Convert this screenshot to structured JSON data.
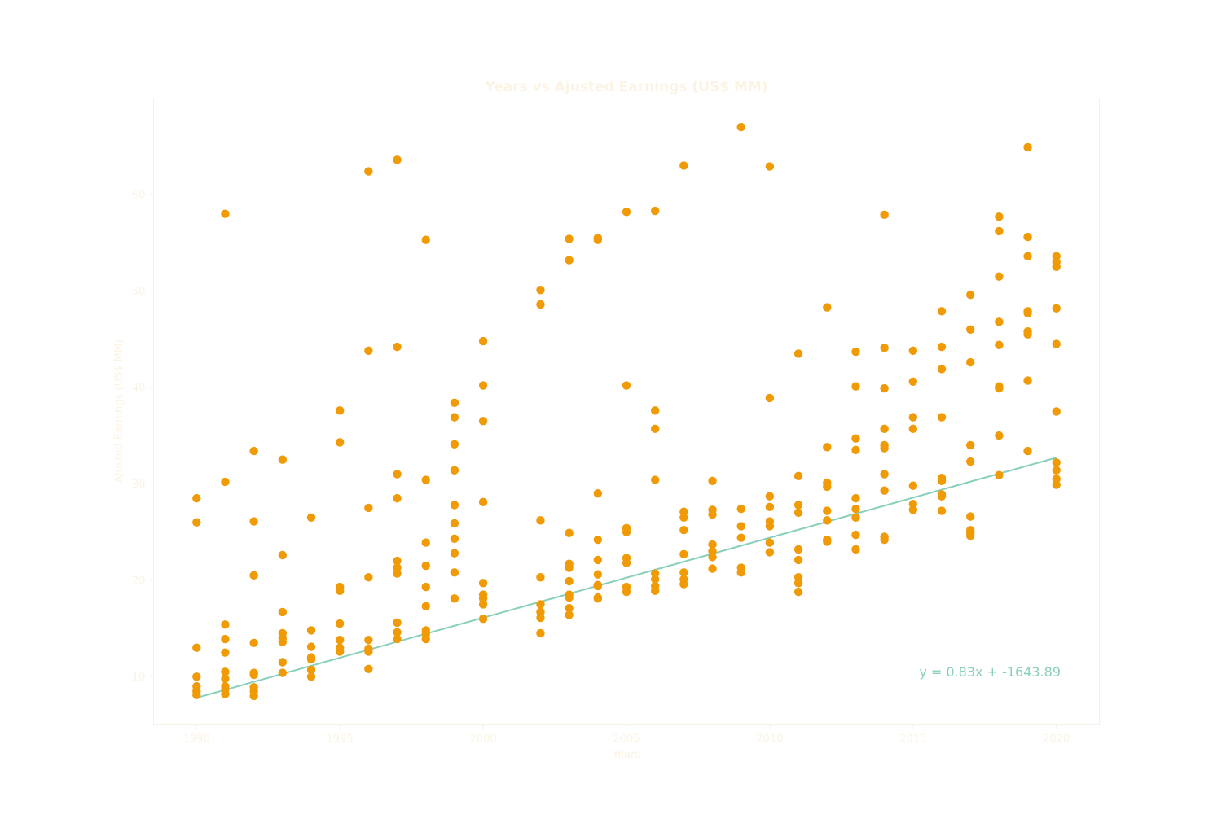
{
  "chart_data": {
    "type": "scatter",
    "title": "Years vs Ajusted Earnings (US$ MM)",
    "xlabel": "Years",
    "ylabel": "Ajusted Earnings (US$ MM)",
    "xlim": [
      1988.5,
      2021.5
    ],
    "ylim": [
      5,
      70
    ],
    "xticks": [
      1990,
      1995,
      2000,
      2005,
      2010,
      2015,
      2020
    ],
    "yticks": [
      10,
      20,
      30,
      40,
      50,
      60
    ],
    "grid": false,
    "colors": {
      "points": "#f09a06",
      "trend": "#88cfbc",
      "text": "#fbf4e4",
      "frame": "#f4f0e6"
    },
    "trendline": {
      "slope": 0.83,
      "intercept": -1643.89,
      "x_range": [
        1990,
        2020
      ],
      "label": "y = 0.83x + -1643.89"
    },
    "points": [
      {
        "x": 1990,
        "y": 28.5
      },
      {
        "x": 1990,
        "y": 26.0
      },
      {
        "x": 1990,
        "y": 13.0
      },
      {
        "x": 1990,
        "y": 10.0
      },
      {
        "x": 1990,
        "y": 9.0
      },
      {
        "x": 1990,
        "y": 8.5
      },
      {
        "x": 1990,
        "y": 8.1
      },
      {
        "x": 1991,
        "y": 58.0
      },
      {
        "x": 1991,
        "y": 30.2
      },
      {
        "x": 1991,
        "y": 15.4
      },
      {
        "x": 1991,
        "y": 13.9
      },
      {
        "x": 1991,
        "y": 12.5
      },
      {
        "x": 1991,
        "y": 10.5
      },
      {
        "x": 1991,
        "y": 9.8
      },
      {
        "x": 1991,
        "y": 9.0
      },
      {
        "x": 1991,
        "y": 8.7
      },
      {
        "x": 1991,
        "y": 8.2
      },
      {
        "x": 1992,
        "y": 33.4
      },
      {
        "x": 1992,
        "y": 26.1
      },
      {
        "x": 1992,
        "y": 20.5
      },
      {
        "x": 1992,
        "y": 13.5
      },
      {
        "x": 1992,
        "y": 10.4
      },
      {
        "x": 1992,
        "y": 10.2
      },
      {
        "x": 1992,
        "y": 8.9
      },
      {
        "x": 1992,
        "y": 8.5
      },
      {
        "x": 1992,
        "y": 8.0
      },
      {
        "x": 1993,
        "y": 32.5
      },
      {
        "x": 1993,
        "y": 22.6
      },
      {
        "x": 1993,
        "y": 16.7
      },
      {
        "x": 1993,
        "y": 14.5
      },
      {
        "x": 1993,
        "y": 14.0
      },
      {
        "x": 1993,
        "y": 13.6
      },
      {
        "x": 1993,
        "y": 11.5
      },
      {
        "x": 1993,
        "y": 10.4
      },
      {
        "x": 1994,
        "y": 26.5
      },
      {
        "x": 1994,
        "y": 14.8
      },
      {
        "x": 1994,
        "y": 13.1
      },
      {
        "x": 1994,
        "y": 12.0
      },
      {
        "x": 1994,
        "y": 11.8
      },
      {
        "x": 1994,
        "y": 10.7
      },
      {
        "x": 1994,
        "y": 10.0
      },
      {
        "x": 1995,
        "y": 37.6
      },
      {
        "x": 1995,
        "y": 34.3
      },
      {
        "x": 1995,
        "y": 19.3
      },
      {
        "x": 1995,
        "y": 18.9
      },
      {
        "x": 1995,
        "y": 15.5
      },
      {
        "x": 1995,
        "y": 13.8
      },
      {
        "x": 1995,
        "y": 13.0
      },
      {
        "x": 1995,
        "y": 12.6
      },
      {
        "x": 1996,
        "y": 62.4
      },
      {
        "x": 1996,
        "y": 43.8
      },
      {
        "x": 1996,
        "y": 27.5
      },
      {
        "x": 1996,
        "y": 20.3
      },
      {
        "x": 1996,
        "y": 13.8
      },
      {
        "x": 1996,
        "y": 12.9
      },
      {
        "x": 1996,
        "y": 12.6
      },
      {
        "x": 1996,
        "y": 10.8
      },
      {
        "x": 1997,
        "y": 63.6
      },
      {
        "x": 1997,
        "y": 44.2
      },
      {
        "x": 1997,
        "y": 31.0
      },
      {
        "x": 1997,
        "y": 28.5
      },
      {
        "x": 1997,
        "y": 22.0
      },
      {
        "x": 1997,
        "y": 21.3
      },
      {
        "x": 1997,
        "y": 20.7
      },
      {
        "x": 1997,
        "y": 15.6
      },
      {
        "x": 1997,
        "y": 14.6
      },
      {
        "x": 1997,
        "y": 13.9
      },
      {
        "x": 1998,
        "y": 55.3
      },
      {
        "x": 1998,
        "y": 30.4
      },
      {
        "x": 1998,
        "y": 23.9
      },
      {
        "x": 1998,
        "y": 21.5
      },
      {
        "x": 1998,
        "y": 19.3
      },
      {
        "x": 1998,
        "y": 17.3
      },
      {
        "x": 1998,
        "y": 14.8
      },
      {
        "x": 1998,
        "y": 14.4
      },
      {
        "x": 1998,
        "y": 13.9
      },
      {
        "x": 1999,
        "y": 38.4
      },
      {
        "x": 1999,
        "y": 36.9
      },
      {
        "x": 1999,
        "y": 34.1
      },
      {
        "x": 1999,
        "y": 31.4
      },
      {
        "x": 1999,
        "y": 27.8
      },
      {
        "x": 1999,
        "y": 25.9
      },
      {
        "x": 1999,
        "y": 24.3
      },
      {
        "x": 1999,
        "y": 22.8
      },
      {
        "x": 1999,
        "y": 20.8
      },
      {
        "x": 1999,
        "y": 18.1
      },
      {
        "x": 2000,
        "y": 44.8
      },
      {
        "x": 2000,
        "y": 40.2
      },
      {
        "x": 2000,
        "y": 36.5
      },
      {
        "x": 2000,
        "y": 28.1
      },
      {
        "x": 2000,
        "y": 19.7
      },
      {
        "x": 2000,
        "y": 18.5
      },
      {
        "x": 2000,
        "y": 18.1
      },
      {
        "x": 2000,
        "y": 17.5
      },
      {
        "x": 2000,
        "y": 16.0
      },
      {
        "x": 2002,
        "y": 50.1
      },
      {
        "x": 2002,
        "y": 48.6
      },
      {
        "x": 2002,
        "y": 26.2
      },
      {
        "x": 2002,
        "y": 20.3
      },
      {
        "x": 2002,
        "y": 17.5
      },
      {
        "x": 2002,
        "y": 16.7
      },
      {
        "x": 2002,
        "y": 16.1
      },
      {
        "x": 2002,
        "y": 14.5
      },
      {
        "x": 2003,
        "y": 55.4
      },
      {
        "x": 2003,
        "y": 53.2
      },
      {
        "x": 2003,
        "y": 24.9
      },
      {
        "x": 2003,
        "y": 21.7
      },
      {
        "x": 2003,
        "y": 21.3
      },
      {
        "x": 2003,
        "y": 19.9
      },
      {
        "x": 2003,
        "y": 18.5
      },
      {
        "x": 2003,
        "y": 18.2
      },
      {
        "x": 2003,
        "y": 17.1
      },
      {
        "x": 2003,
        "y": 16.4
      },
      {
        "x": 2004,
        "y": 55.5
      },
      {
        "x": 2004,
        "y": 55.3
      },
      {
        "x": 2004,
        "y": 29.0
      },
      {
        "x": 2004,
        "y": 24.2
      },
      {
        "x": 2004,
        "y": 22.1
      },
      {
        "x": 2004,
        "y": 20.6
      },
      {
        "x": 2004,
        "y": 19.5
      },
      {
        "x": 2004,
        "y": 19.4
      },
      {
        "x": 2004,
        "y": 18.2
      },
      {
        "x": 2004,
        "y": 18.1
      },
      {
        "x": 2005,
        "y": 58.2
      },
      {
        "x": 2005,
        "y": 40.2
      },
      {
        "x": 2005,
        "y": 25.4
      },
      {
        "x": 2005,
        "y": 25.0
      },
      {
        "x": 2005,
        "y": 22.3
      },
      {
        "x": 2005,
        "y": 21.8
      },
      {
        "x": 2005,
        "y": 19.3
      },
      {
        "x": 2005,
        "y": 18.8
      },
      {
        "x": 2006,
        "y": 58.3
      },
      {
        "x": 2006,
        "y": 37.6
      },
      {
        "x": 2006,
        "y": 35.7
      },
      {
        "x": 2006,
        "y": 30.4
      },
      {
        "x": 2006,
        "y": 20.7
      },
      {
        "x": 2006,
        "y": 20.1
      },
      {
        "x": 2006,
        "y": 19.4
      },
      {
        "x": 2006,
        "y": 18.9
      },
      {
        "x": 2007,
        "y": 63.0
      },
      {
        "x": 2007,
        "y": 27.1
      },
      {
        "x": 2007,
        "y": 26.5
      },
      {
        "x": 2007,
        "y": 25.2
      },
      {
        "x": 2007,
        "y": 22.7
      },
      {
        "x": 2007,
        "y": 20.8
      },
      {
        "x": 2007,
        "y": 20.1
      },
      {
        "x": 2007,
        "y": 19.6
      },
      {
        "x": 2008,
        "y": 30.3
      },
      {
        "x": 2008,
        "y": 27.3
      },
      {
        "x": 2008,
        "y": 26.8
      },
      {
        "x": 2008,
        "y": 23.7
      },
      {
        "x": 2008,
        "y": 23.0
      },
      {
        "x": 2008,
        "y": 22.4
      },
      {
        "x": 2008,
        "y": 21.2
      },
      {
        "x": 2009,
        "y": 67.0
      },
      {
        "x": 2009,
        "y": 27.4
      },
      {
        "x": 2009,
        "y": 25.6
      },
      {
        "x": 2009,
        "y": 24.4
      },
      {
        "x": 2009,
        "y": 21.3
      },
      {
        "x": 2009,
        "y": 20.8
      },
      {
        "x": 2010,
        "y": 62.9
      },
      {
        "x": 2010,
        "y": 38.9
      },
      {
        "x": 2010,
        "y": 28.7
      },
      {
        "x": 2010,
        "y": 27.6
      },
      {
        "x": 2010,
        "y": 26.1
      },
      {
        "x": 2010,
        "y": 25.6
      },
      {
        "x": 2010,
        "y": 23.9
      },
      {
        "x": 2010,
        "y": 22.9
      },
      {
        "x": 2011,
        "y": 43.5
      },
      {
        "x": 2011,
        "y": 30.8
      },
      {
        "x": 2011,
        "y": 27.8
      },
      {
        "x": 2011,
        "y": 27.0
      },
      {
        "x": 2011,
        "y": 23.2
      },
      {
        "x": 2011,
        "y": 22.1
      },
      {
        "x": 2011,
        "y": 20.3
      },
      {
        "x": 2011,
        "y": 19.7
      },
      {
        "x": 2011,
        "y": 18.8
      },
      {
        "x": 2012,
        "y": 48.3
      },
      {
        "x": 2012,
        "y": 33.8
      },
      {
        "x": 2012,
        "y": 30.1
      },
      {
        "x": 2012,
        "y": 29.7
      },
      {
        "x": 2012,
        "y": 27.2
      },
      {
        "x": 2012,
        "y": 26.2
      },
      {
        "x": 2012,
        "y": 24.2
      },
      {
        "x": 2012,
        "y": 24.0
      },
      {
        "x": 2013,
        "y": 43.7
      },
      {
        "x": 2013,
        "y": 40.1
      },
      {
        "x": 2013,
        "y": 34.7
      },
      {
        "x": 2013,
        "y": 33.5
      },
      {
        "x": 2013,
        "y": 28.5
      },
      {
        "x": 2013,
        "y": 27.4
      },
      {
        "x": 2013,
        "y": 26.5
      },
      {
        "x": 2013,
        "y": 24.7
      },
      {
        "x": 2013,
        "y": 23.2
      },
      {
        "x": 2014,
        "y": 57.9
      },
      {
        "x": 2014,
        "y": 44.1
      },
      {
        "x": 2014,
        "y": 39.9
      },
      {
        "x": 2014,
        "y": 35.7
      },
      {
        "x": 2014,
        "y": 34.0
      },
      {
        "x": 2014,
        "y": 33.7
      },
      {
        "x": 2014,
        "y": 31.0
      },
      {
        "x": 2014,
        "y": 29.3
      },
      {
        "x": 2014,
        "y": 24.5
      },
      {
        "x": 2014,
        "y": 24.2
      },
      {
        "x": 2015,
        "y": 43.8
      },
      {
        "x": 2015,
        "y": 40.6
      },
      {
        "x": 2015,
        "y": 36.9
      },
      {
        "x": 2015,
        "y": 35.7
      },
      {
        "x": 2015,
        "y": 29.8
      },
      {
        "x": 2015,
        "y": 27.9
      },
      {
        "x": 2015,
        "y": 27.3
      },
      {
        "x": 2016,
        "y": 47.9
      },
      {
        "x": 2016,
        "y": 44.2
      },
      {
        "x": 2016,
        "y": 41.9
      },
      {
        "x": 2016,
        "y": 36.9
      },
      {
        "x": 2016,
        "y": 30.6
      },
      {
        "x": 2016,
        "y": 30.3
      },
      {
        "x": 2016,
        "y": 28.9
      },
      {
        "x": 2016,
        "y": 28.7
      },
      {
        "x": 2016,
        "y": 27.2
      },
      {
        "x": 2017,
        "y": 49.6
      },
      {
        "x": 2017,
        "y": 46.0
      },
      {
        "x": 2017,
        "y": 42.6
      },
      {
        "x": 2017,
        "y": 34.0
      },
      {
        "x": 2017,
        "y": 32.3
      },
      {
        "x": 2017,
        "y": 26.6
      },
      {
        "x": 2017,
        "y": 25.2
      },
      {
        "x": 2017,
        "y": 24.9
      },
      {
        "x": 2017,
        "y": 24.6
      },
      {
        "x": 2018,
        "y": 57.7
      },
      {
        "x": 2018,
        "y": 56.2
      },
      {
        "x": 2018,
        "y": 51.5
      },
      {
        "x": 2018,
        "y": 46.8
      },
      {
        "x": 2018,
        "y": 44.4
      },
      {
        "x": 2018,
        "y": 40.1
      },
      {
        "x": 2018,
        "y": 39.9
      },
      {
        "x": 2018,
        "y": 35.0
      },
      {
        "x": 2018,
        "y": 30.9
      },
      {
        "x": 2019,
        "y": 64.9
      },
      {
        "x": 2019,
        "y": 55.6
      },
      {
        "x": 2019,
        "y": 53.6
      },
      {
        "x": 2019,
        "y": 47.9
      },
      {
        "x": 2019,
        "y": 47.7
      },
      {
        "x": 2019,
        "y": 45.8
      },
      {
        "x": 2019,
        "y": 45.5
      },
      {
        "x": 2019,
        "y": 40.7
      },
      {
        "x": 2019,
        "y": 33.4
      },
      {
        "x": 2020,
        "y": 53.6
      },
      {
        "x": 2020,
        "y": 53.0
      },
      {
        "x": 2020,
        "y": 52.5
      },
      {
        "x": 2020,
        "y": 48.2
      },
      {
        "x": 2020,
        "y": 44.5
      },
      {
        "x": 2020,
        "y": 37.5
      },
      {
        "x": 2020,
        "y": 32.2
      },
      {
        "x": 2020,
        "y": 31.4
      },
      {
        "x": 2020,
        "y": 30.5
      },
      {
        "x": 2020,
        "y": 29.9
      }
    ]
  }
}
